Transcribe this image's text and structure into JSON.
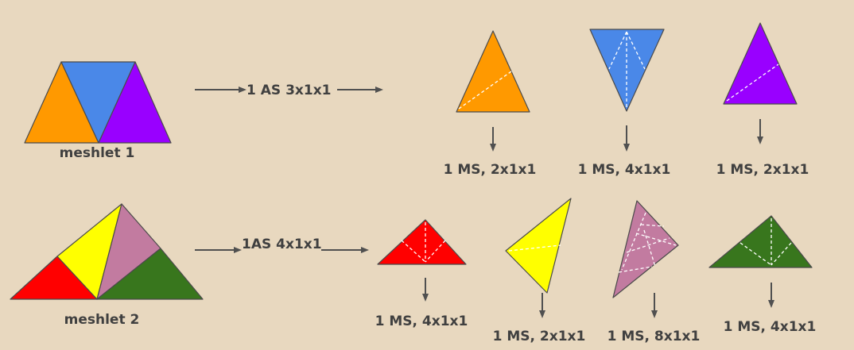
{
  "colors": {
    "background": "#e8d8bf",
    "orange": "#ff9900",
    "blue": "#4a88e8",
    "purple": "#9900ff",
    "red": "#ff0000",
    "yellow": "#ffff00",
    "pink": "#c27ba0",
    "green": "#38761d",
    "outline": "#4a4a4a",
    "text": "#404040"
  },
  "meshlet1": {
    "label": "meshlet 1",
    "arrow_label": "1 AS 3x1x1",
    "triangles": [
      {
        "color": "orange",
        "label": "1 MS, 2x1x1"
      },
      {
        "color": "blue",
        "label": "1 MS, 4x1x1"
      },
      {
        "color": "purple",
        "label": "1 MS, 2x1x1"
      }
    ]
  },
  "meshlet2": {
    "label": "meshlet 2",
    "arrow_label": "1AS 4x1x1",
    "triangles": [
      {
        "color": "red",
        "label": "1 MS, 4x1x1"
      },
      {
        "color": "yellow",
        "label": "1 MS, 2x1x1"
      },
      {
        "color": "pink",
        "label": "1 MS, 8x1x1"
      },
      {
        "color": "green",
        "label": "1 MS, 4x1x1"
      }
    ]
  }
}
